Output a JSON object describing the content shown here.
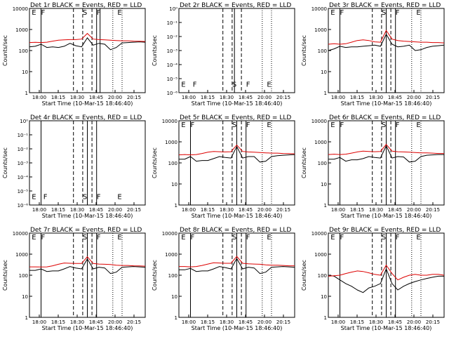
{
  "colors": {
    "events": "#000000",
    "lld": "#dd0000",
    "background": "#ffffff"
  },
  "time_ticks": [
    "18:00",
    "18:15",
    "18:30",
    "18:45",
    "20:00",
    "20:15"
  ],
  "chart_data": [
    {
      "type": "line",
      "title": "Det 1r BLACK = Events, RED = LLD",
      "xlabel": "Start Time (10-Mar-15 18:46:40)",
      "ylabel": "Counts/sec",
      "yscale": "log",
      "ylim": [
        1,
        10000
      ],
      "y_ticks": [
        "1",
        "10",
        "100",
        "1000",
        "10000"
      ],
      "x": [
        0,
        0.05,
        0.1,
        0.15,
        0.2,
        0.25,
        0.3,
        0.35,
        0.4,
        0.45,
        0.5,
        0.55,
        0.6,
        0.65,
        0.7,
        0.75,
        0.8,
        0.85,
        0.9,
        0.95,
        1
      ],
      "series": [
        {
          "name": "Events",
          "values": [
            150,
            160,
            200,
            140,
            150,
            140,
            160,
            220,
            170,
            150,
            400,
            180,
            220,
            200,
            110,
            140,
            230,
            240,
            250,
            260,
            250
          ]
        },
        {
          "name": "LLD",
          "values": [
            240,
            245,
            240,
            250,
            280,
            310,
            320,
            330,
            330,
            350,
            650,
            350,
            330,
            320,
            310,
            300,
            290,
            290,
            280,
            275,
            270
          ]
        }
      ],
      "markers": [
        {
          "label": "E",
          "x": 0.02
        },
        {
          "label": "F",
          "x": 0.1
        },
        {
          "label": "S",
          "x": 0.46
        },
        {
          "label": "F",
          "x": 0.58
        },
        {
          "label": "E",
          "x": 0.76
        }
      ],
      "solid_lines": [
        0.1,
        0.58,
        0.61
      ],
      "dashed_lines": [
        0.38,
        0.46,
        0.54
      ],
      "dotted_lines": [
        0.72,
        0.8
      ]
    },
    {
      "type": "line",
      "title": "Det 2r BLACK = Events, RED = LLD",
      "xlabel": "Start Time (10-Mar-15 18:46:40)",
      "ylabel": "Counts/sec",
      "yscale": "log",
      "ylim": [
        1e-06,
        1
      ],
      "y_ticks": [
        "10⁻⁶",
        "10⁻⁵",
        "10⁻⁴",
        "10⁻³",
        "10⁻²",
        "10⁻¹",
        "10⁰"
      ],
      "x": [],
      "series": [],
      "markers": [
        {
          "label": "E",
          "x": 0.02
        },
        {
          "label": "F",
          "x": 0.12
        },
        {
          "label": "S",
          "x": 0.46
        },
        {
          "label": "F",
          "x": 0.58
        },
        {
          "label": "E",
          "x": 0.76
        }
      ],
      "solid_lines": [
        0.48
      ],
      "dashed_lines": [
        0.38,
        0.46,
        0.54
      ],
      "dotted_lines": [
        0.72,
        0.8
      ]
    },
    {
      "type": "line",
      "title": "Det 3r BLACK = Events, RED = LLD",
      "xlabel": "Start Time (10-Mar-15 18:46:40)",
      "ylabel": "Counts/sec",
      "yscale": "log",
      "ylim": [
        1,
        10000
      ],
      "y_ticks": [
        "1",
        "10",
        "100",
        "1000",
        "10000"
      ],
      "x": [
        0,
        0.05,
        0.1,
        0.15,
        0.2,
        0.25,
        0.3,
        0.35,
        0.4,
        0.45,
        0.5,
        0.55,
        0.6,
        0.65,
        0.7,
        0.75,
        0.8,
        0.85,
        0.9,
        0.95,
        1
      ],
      "series": [
        {
          "name": "Events",
          "values": [
            100,
            120,
            160,
            140,
            150,
            150,
            160,
            170,
            180,
            160,
            600,
            200,
            150,
            160,
            180,
            100,
            110,
            140,
            160,
            170,
            180
          ]
        },
        {
          "name": "LLD",
          "values": [
            200,
            210,
            200,
            210,
            250,
            300,
            320,
            300,
            260,
            250,
            900,
            350,
            300,
            280,
            270,
            260,
            250,
            250,
            240,
            240,
            230
          ]
        }
      ],
      "markers": [
        {
          "label": "E",
          "x": 0.02
        },
        {
          "label": "F",
          "x": 0.1
        },
        {
          "label": "S",
          "x": 0.46
        },
        {
          "label": "F",
          "x": 0.58
        },
        {
          "label": "E",
          "x": 0.76
        }
      ],
      "solid_lines": [
        0.1,
        0.5,
        0.58
      ],
      "dashed_lines": [
        0.38,
        0.46,
        0.54
      ],
      "dotted_lines": [
        0.72,
        0.8
      ]
    },
    {
      "type": "line",
      "title": "Det 4r BLACK = Events, RED = LLD",
      "xlabel": "Start Time (10-Mar-15 18:46:40)",
      "ylabel": "Counts/sec",
      "yscale": "log",
      "ylim": [
        1e-06,
        1
      ],
      "y_ticks": [
        "10⁻⁶",
        "10⁻⁵",
        "10⁻⁴",
        "10⁻³",
        "10⁻²",
        "10⁻¹",
        "10⁰"
      ],
      "x": [],
      "series": [],
      "markers": [
        {
          "label": "E",
          "x": 0.02
        },
        {
          "label": "F",
          "x": 0.12
        },
        {
          "label": "S",
          "x": 0.46
        },
        {
          "label": "F",
          "x": 0.58
        },
        {
          "label": "E",
          "x": 0.76
        }
      ],
      "solid_lines": [
        0.1,
        0.5,
        0.58
      ],
      "dashed_lines": [
        0.38,
        0.46,
        0.54
      ],
      "dotted_lines": []
    },
    {
      "type": "line",
      "title": "Det 5r BLACK = Events, RED = LLD",
      "xlabel": "Start Time (10-Mar-15 18:46:40)",
      "ylabel": "Counts/sec",
      "yscale": "log",
      "ylim": [
        1,
        10000
      ],
      "y_ticks": [
        "1",
        "10",
        "100",
        "1000",
        "10000"
      ],
      "x": [
        0,
        0.05,
        0.1,
        0.15,
        0.2,
        0.25,
        0.3,
        0.35,
        0.4,
        0.45,
        0.5,
        0.55,
        0.6,
        0.65,
        0.7,
        0.75,
        0.8,
        0.85,
        0.9,
        0.95,
        1
      ],
      "series": [
        {
          "name": "Events",
          "values": [
            150,
            150,
            200,
            120,
            130,
            130,
            160,
            200,
            180,
            170,
            600,
            170,
            200,
            200,
            110,
            120,
            200,
            220,
            230,
            240,
            250
          ]
        },
        {
          "name": "LLD",
          "values": [
            240,
            250,
            240,
            250,
            280,
            320,
            350,
            340,
            330,
            340,
            700,
            350,
            330,
            320,
            310,
            300,
            290,
            290,
            280,
            275,
            270
          ]
        }
      ],
      "markers": [
        {
          "label": "E",
          "x": 0.02
        },
        {
          "label": "F",
          "x": 0.1
        },
        {
          "label": "S",
          "x": 0.46
        },
        {
          "label": "F",
          "x": 0.58
        },
        {
          "label": "E",
          "x": 0.76
        }
      ],
      "solid_lines": [
        0.1,
        0.5,
        0.58
      ],
      "dashed_lines": [
        0.38,
        0.46,
        0.54
      ],
      "dotted_lines": [
        0.72,
        0.8
      ]
    },
    {
      "type": "line",
      "title": "Det 6r BLACK = Events, RED = LLD",
      "xlabel": "Start Time (10-Mar-15 18:46:40)",
      "ylabel": "Counts/sec",
      "yscale": "log",
      "ylim": [
        1,
        10000
      ],
      "y_ticks": [
        "1",
        "10",
        "100",
        "1000",
        "10000"
      ],
      "x": [
        0,
        0.05,
        0.1,
        0.15,
        0.2,
        0.25,
        0.3,
        0.35,
        0.4,
        0.45,
        0.5,
        0.55,
        0.6,
        0.65,
        0.7,
        0.75,
        0.8,
        0.85,
        0.9,
        0.95,
        1
      ],
      "series": [
        {
          "name": "Events",
          "values": [
            150,
            150,
            180,
            120,
            140,
            140,
            160,
            200,
            180,
            170,
            650,
            170,
            200,
            190,
            110,
            120,
            200,
            230,
            240,
            250,
            250
          ]
        },
        {
          "name": "LLD",
          "values": [
            250,
            260,
            250,
            260,
            290,
            330,
            360,
            350,
            340,
            350,
            750,
            360,
            340,
            330,
            320,
            310,
            300,
            300,
            290,
            280,
            280
          ]
        }
      ],
      "markers": [
        {
          "label": "E",
          "x": 0.02
        },
        {
          "label": "F",
          "x": 0.1
        },
        {
          "label": "S",
          "x": 0.46
        },
        {
          "label": "F",
          "x": 0.58
        },
        {
          "label": "E",
          "x": 0.76
        }
      ],
      "solid_lines": [
        0.1,
        0.5,
        0.58
      ],
      "dashed_lines": [
        0.38,
        0.46,
        0.54
      ],
      "dotted_lines": [
        0.72,
        0.8
      ]
    },
    {
      "type": "line",
      "title": "Det 7r BLACK = Events, RED = LLD",
      "xlabel": "Start Time (10-Mar-15 18:46:40)",
      "ylabel": "Counts/sec",
      "yscale": "log",
      "ylim": [
        1,
        10000
      ],
      "y_ticks": [
        "1",
        "10",
        "100",
        "1000",
        "10000"
      ],
      "x": [
        0,
        0.05,
        0.1,
        0.15,
        0.2,
        0.25,
        0.3,
        0.35,
        0.4,
        0.45,
        0.5,
        0.55,
        0.6,
        0.65,
        0.7,
        0.75,
        0.8,
        0.85,
        0.9,
        0.95,
        1
      ],
      "series": [
        {
          "name": "Events",
          "values": [
            170,
            170,
            200,
            150,
            160,
            160,
            200,
            260,
            220,
            200,
            600,
            200,
            240,
            220,
            120,
            140,
            240,
            250,
            260,
            250,
            240
          ]
        },
        {
          "name": "LLD",
          "values": [
            250,
            250,
            245,
            250,
            280,
            330,
            380,
            370,
            360,
            360,
            750,
            360,
            340,
            330,
            320,
            300,
            290,
            290,
            280,
            275,
            270
          ]
        }
      ],
      "markers": [
        {
          "label": "E",
          "x": 0.02
        },
        {
          "label": "F",
          "x": 0.1
        },
        {
          "label": "S",
          "x": 0.46
        },
        {
          "label": "F",
          "x": 0.58
        },
        {
          "label": "E",
          "x": 0.76
        }
      ],
      "solid_lines": [
        0.1,
        0.5,
        0.58
      ],
      "dashed_lines": [
        0.38,
        0.46,
        0.54
      ],
      "dotted_lines": [
        0.72,
        0.8
      ]
    },
    {
      "type": "line",
      "title": "Det 8r BLACK = Events, RED = LLD",
      "xlabel": "Start Time (10-Mar-15 18:46:40)",
      "ylabel": "Counts/sec",
      "yscale": "log",
      "ylim": [
        1,
        10000
      ],
      "y_ticks": [
        "1",
        "10",
        "100",
        "1000",
        "10000"
      ],
      "x": [
        0,
        0.05,
        0.1,
        0.15,
        0.2,
        0.25,
        0.3,
        0.35,
        0.4,
        0.45,
        0.5,
        0.55,
        0.6,
        0.65,
        0.7,
        0.75,
        0.8,
        0.85,
        0.9,
        0.95,
        1
      ],
      "series": [
        {
          "name": "Events",
          "values": [
            180,
            180,
            210,
            150,
            160,
            160,
            200,
            260,
            230,
            200,
            620,
            200,
            240,
            220,
            120,
            140,
            240,
            250,
            260,
            250,
            240
          ]
        },
        {
          "name": "LLD",
          "values": [
            260,
            260,
            250,
            260,
            290,
            340,
            390,
            380,
            370,
            370,
            780,
            370,
            350,
            340,
            330,
            310,
            300,
            300,
            290,
            280,
            280
          ]
        }
      ],
      "markers": [
        {
          "label": "E",
          "x": 0.02
        },
        {
          "label": "F",
          "x": 0.1
        },
        {
          "label": "S",
          "x": 0.46
        },
        {
          "label": "F",
          "x": 0.58
        },
        {
          "label": "E",
          "x": 0.76
        }
      ],
      "solid_lines": [
        0.1,
        0.5,
        0.58
      ],
      "dashed_lines": [
        0.38,
        0.46,
        0.54
      ],
      "dotted_lines": [
        0.72,
        0.8
      ]
    },
    {
      "type": "line",
      "title": "Det 9r BLACK = Events, RED = LLD",
      "xlabel": "Start Time (10-Mar-15 18:46:40)",
      "ylabel": "Counts/sec",
      "yscale": "log",
      "ylim": [
        1,
        10000
      ],
      "y_ticks": [
        "1",
        "10",
        "100",
        "1000",
        "10000"
      ],
      "x": [
        0,
        0.05,
        0.1,
        0.15,
        0.2,
        0.25,
        0.3,
        0.35,
        0.4,
        0.45,
        0.5,
        0.55,
        0.6,
        0.65,
        0.7,
        0.75,
        0.8,
        0.85,
        0.9,
        0.95,
        1
      ],
      "series": [
        {
          "name": "Events",
          "values": [
            100,
            90,
            60,
            40,
            30,
            20,
            15,
            25,
            30,
            40,
            200,
            40,
            20,
            30,
            40,
            50,
            60,
            70,
            80,
            90,
            90
          ]
        },
        {
          "name": "LLD",
          "values": [
            90,
            95,
            100,
            120,
            140,
            160,
            150,
            130,
            110,
            100,
            300,
            120,
            60,
            80,
            100,
            110,
            100,
            100,
            110,
            110,
            100
          ]
        }
      ],
      "markers": [
        {
          "label": "E",
          "x": 0.02
        },
        {
          "label": "F",
          "x": 0.1
        },
        {
          "label": "S",
          "x": 0.46
        },
        {
          "label": "F",
          "x": 0.58
        },
        {
          "label": "E",
          "x": 0.76
        }
      ],
      "solid_lines": [
        0.1,
        0.5,
        0.58
      ],
      "dashed_lines": [
        0.38,
        0.46,
        0.54
      ],
      "dotted_lines": [
        0.72,
        0.8
      ]
    }
  ]
}
